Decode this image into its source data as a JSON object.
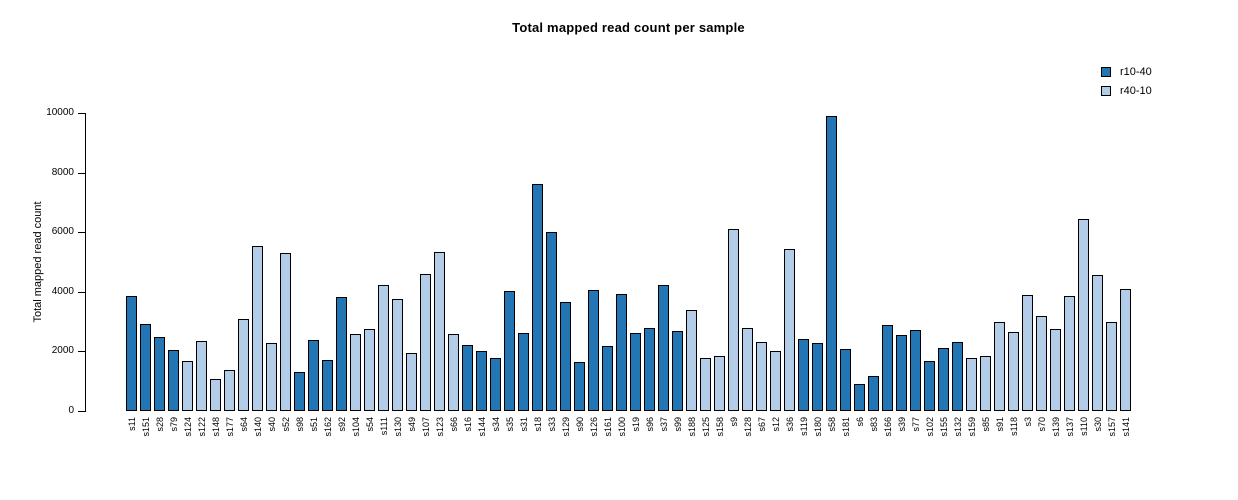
{
  "chart_data": {
    "type": "bar",
    "title": "Total mapped read count per sample",
    "xlabel": "",
    "ylabel": "Total mapped read count",
    "ylim": [
      0,
      10000
    ],
    "yticks": [
      0,
      2000,
      4000,
      6000,
      8000,
      10000
    ],
    "grid": false,
    "legend_position": "top-right",
    "bar_border_color": "#000000",
    "series": [
      {
        "name": "r10-40",
        "color": "#2475b3"
      },
      {
        "name": "r40-10",
        "color": "#b3cce7"
      }
    ],
    "categories": [
      "s11",
      "s151",
      "s28",
      "s79",
      "s124",
      "s122",
      "s148",
      "s177",
      "s64",
      "s140",
      "s40",
      "s52",
      "s98",
      "s51",
      "s162",
      "s92",
      "s104",
      "s54",
      "s111",
      "s130",
      "s49",
      "s107",
      "s123",
      "s66",
      "s16",
      "s144",
      "s34",
      "s35",
      "s31",
      "s18",
      "s33",
      "s129",
      "s90",
      "s126",
      "s161",
      "s100",
      "s19",
      "s96",
      "s37",
      "s99",
      "s188",
      "s125",
      "s158",
      "s9",
      "s128",
      "s67",
      "s12",
      "s36",
      "s119",
      "s180",
      "s58",
      "s181",
      "s6",
      "s83",
      "s166",
      "s39",
      "s77",
      "s102",
      "s155",
      "s132",
      "s159",
      "s85",
      "s91",
      "s118",
      "s3",
      "s70",
      "s139",
      "s137",
      "s110",
      "s30",
      "s157",
      "s141"
    ],
    "values": [
      3850,
      2920,
      2500,
      2060,
      1680,
      2360,
      1060,
      1390,
      3080,
      5530,
      2290,
      5290,
      1300,
      2390,
      1720,
      3810,
      2590,
      2760,
      4240,
      3770,
      1950,
      4610,
      5350,
      2590,
      2230,
      2020,
      1780,
      4040,
      2620,
      7610,
      5990,
      3650,
      1640,
      4050,
      2190,
      3930,
      2620,
      2780,
      4220,
      2680,
      3400,
      1770,
      1850,
      6120,
      2780,
      2310,
      2030,
      5440,
      2420,
      2270,
      9910,
      2080,
      920,
      1190,
      2900,
      2540,
      2730,
      1690,
      2110,
      2330,
      1770,
      1850,
      3000,
      2650,
      3880,
      3180,
      2750,
      3850,
      6450,
      4550,
      2990,
      4100
    ],
    "bar_series": [
      0,
      0,
      0,
      0,
      1,
      1,
      1,
      1,
      1,
      1,
      1,
      1,
      0,
      0,
      0,
      0,
      1,
      1,
      1,
      1,
      1,
      1,
      1,
      1,
      0,
      0,
      0,
      0,
      0,
      0,
      0,
      0,
      0,
      0,
      0,
      0,
      0,
      0,
      0,
      0,
      1,
      1,
      1,
      1,
      1,
      1,
      1,
      1,
      0,
      0,
      0,
      0,
      0,
      0,
      0,
      0,
      0,
      0,
      0,
      0,
      1,
      1,
      1,
      1,
      1,
      1,
      1,
      1,
      1,
      1,
      1,
      1
    ]
  }
}
